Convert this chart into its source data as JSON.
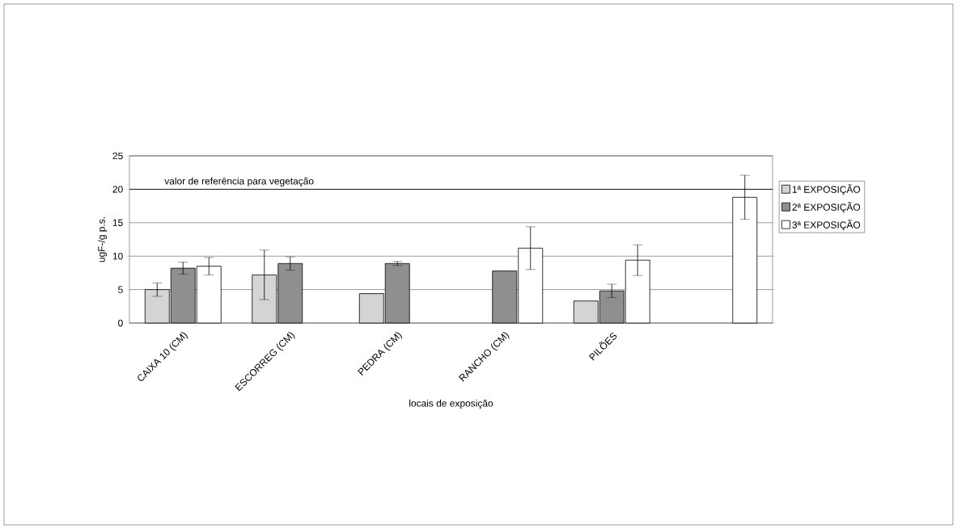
{
  "chart_data": {
    "type": "bar",
    "xlabel": "locais de exposição",
    "ylabel": "ugF-/g p.s.",
    "categories": [
      "CAIXA 10 (CM)",
      "ESCORREG (CM)",
      "PEDRA (CM)",
      "RANCHO  (CM)",
      "PILÕES",
      null
    ],
    "series": [
      {
        "name": "1ª EXPOSIÇÃO",
        "color": "#d4d4d4",
        "values": [
          5.0,
          7.2,
          4.4,
          null,
          3.3,
          null
        ],
        "errors": [
          1.0,
          3.7,
          null,
          null,
          null,
          null
        ]
      },
      {
        "name": "2ª EXPOSIÇÃO",
        "color": "#8f8f8f",
        "values": [
          8.2,
          8.9,
          8.9,
          7.8,
          4.8,
          null
        ],
        "errors": [
          0.9,
          1.0,
          0.3,
          null,
          1.0,
          null
        ]
      },
      {
        "name": "3ª EXPOSIÇÃO",
        "color": "#ffffff",
        "values": [
          8.5,
          null,
          null,
          11.2,
          9.4,
          18.8
        ],
        "errors": [
          1.3,
          null,
          null,
          3.2,
          2.3,
          3.3
        ]
      }
    ],
    "ylim": [
      0,
      25
    ],
    "yticks": [
      0,
      5,
      10,
      15,
      20,
      25
    ],
    "grid": "y",
    "legend": "right",
    "ref_lines": [
      {
        "axis": "y",
        "value": 20,
        "label": "valor de referência para vegetação"
      }
    ]
  }
}
